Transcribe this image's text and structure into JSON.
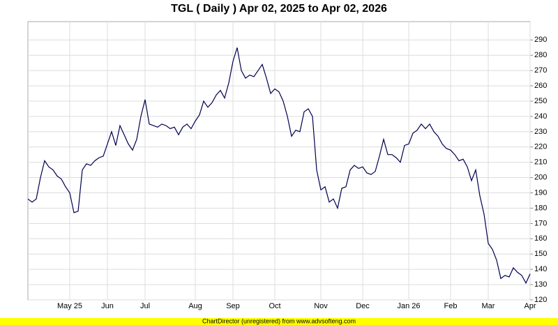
{
  "chart_data": {
    "type": "line",
    "title": "TGL ( Daily ) Apr 02, 2025 to Apr 02, 2026",
    "footer": "ChartDirector (unregistered) from www.advsofteng.com",
    "categories": [
      null,
      null,
      null,
      null,
      null,
      null,
      null,
      null,
      null,
      null,
      "May 25",
      null,
      null,
      null,
      null,
      null,
      null,
      null,
      null,
      "Jun",
      null,
      null,
      null,
      null,
      null,
      null,
      null,
      null,
      "Jul",
      null,
      null,
      null,
      null,
      null,
      null,
      null,
      null,
      null,
      null,
      null,
      "Aug",
      null,
      null,
      null,
      null,
      null,
      null,
      null,
      null,
      "Sep",
      null,
      null,
      null,
      null,
      null,
      null,
      null,
      null,
      null,
      "Oct",
      null,
      null,
      null,
      null,
      null,
      null,
      null,
      null,
      null,
      null,
      "Nov",
      null,
      null,
      null,
      null,
      null,
      null,
      null,
      null,
      null,
      "Dec",
      null,
      null,
      null,
      null,
      null,
      null,
      null,
      null,
      null,
      null,
      "Jan 26",
      null,
      null,
      null,
      null,
      null,
      null,
      null,
      null,
      null,
      "Feb",
      null,
      null,
      null,
      null,
      null,
      null,
      null,
      null,
      "Mar",
      null,
      null,
      null,
      null,
      null,
      null,
      null,
      null,
      null,
      "Apr"
    ],
    "values": [
      186,
      184,
      186,
      200,
      211,
      207,
      205,
      201,
      199,
      194,
      190,
      177,
      178,
      205,
      209,
      208,
      211,
      213,
      214,
      222,
      230,
      221,
      234,
      228,
      222,
      218,
      225,
      240,
      251,
      235,
      234,
      233,
      235,
      234,
      232,
      233,
      228,
      233,
      235,
      232,
      237,
      241,
      250,
      246,
      249,
      254,
      257,
      252,
      262,
      276,
      285,
      270,
      265,
      267,
      266,
      270,
      274,
      265,
      255,
      258,
      256,
      250,
      240,
      227,
      231,
      230,
      243,
      245,
      240,
      205,
      192,
      194,
      184,
      186,
      180,
      193,
      194,
      205,
      208,
      206,
      207,
      203,
      202,
      204,
      214,
      225,
      215,
      215,
      213,
      210,
      221,
      222,
      229,
      231,
      235,
      232,
      235,
      230,
      227,
      222,
      219,
      218,
      215,
      211,
      212,
      207,
      198,
      205,
      188,
      176,
      157,
      153,
      146,
      134,
      136,
      135,
      141,
      138,
      136,
      131,
      137
    ],
    "color": "#000050",
    "ylim": [
      120,
      302
    ],
    "yticks": [
      120,
      130,
      140,
      150,
      160,
      170,
      180,
      190,
      200,
      210,
      220,
      230,
      240,
      250,
      260,
      270,
      280,
      290
    ],
    "grid": true
  }
}
